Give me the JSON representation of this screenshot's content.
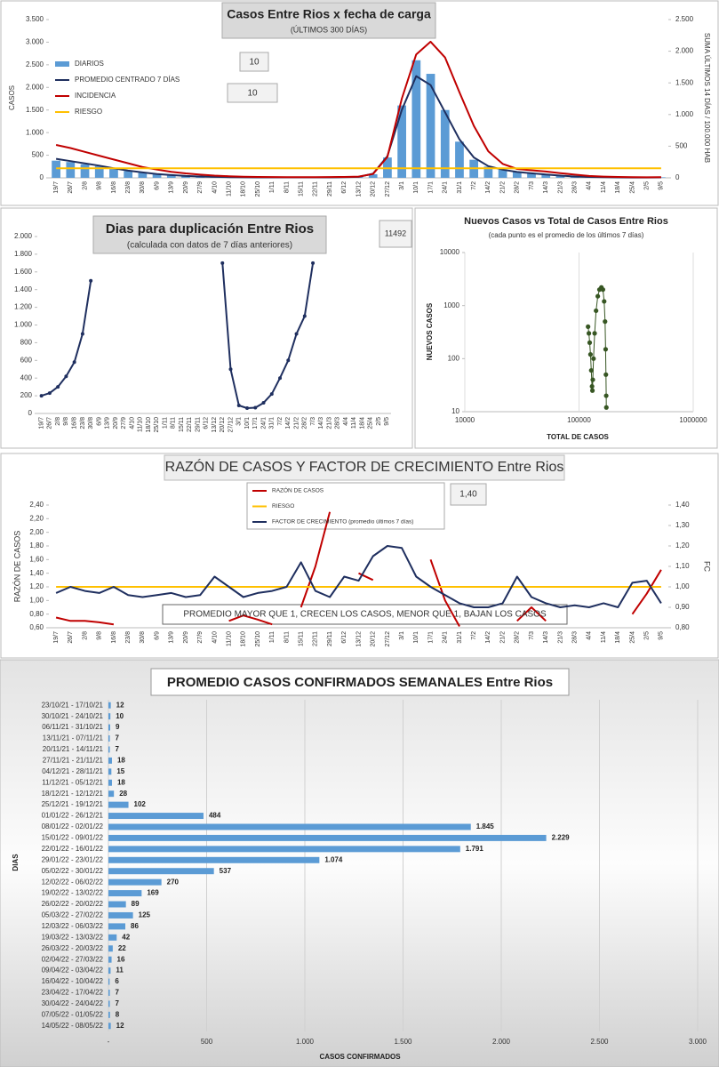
{
  "chart_data": [
    {
      "type": "combo",
      "title": "Casos Entre Rios x fecha de carga",
      "subtitle": "(ÚLTIMOS 300 DÍAS)",
      "y_label": "CASOS",
      "y2_label": "SUMA ÚLTIMOS 14 DÍAS / 100.000 HAB",
      "annotations": [
        "10",
        "10"
      ],
      "categories": [
        "19/7",
        "26/7",
        "2/8",
        "9/8",
        "16/8",
        "23/8",
        "30/8",
        "6/9",
        "13/9",
        "20/9",
        "27/9",
        "4/10",
        "11/10",
        "18/10",
        "25/10",
        "1/11",
        "8/11",
        "15/11",
        "22/11",
        "29/11",
        "6/12",
        "13/12",
        "20/12",
        "27/12",
        "3/1",
        "10/1",
        "17/1",
        "24/1",
        "31/1",
        "7/2",
        "14/2",
        "21/2",
        "28/2",
        "7/3",
        "14/3",
        "21/3",
        "28/3",
        "4/4",
        "11/4",
        "18/4",
        "25/4",
        "2/5",
        "9/5"
      ],
      "ylim": [
        0,
        3500
      ],
      "yticks": [
        0,
        500,
        {
          "value": 1000,
          "label": "1.000"
        },
        {
          "value": 1500,
          "label": "1.500"
        },
        {
          "value": 2000,
          "label": "2.000"
        },
        {
          "value": 2500,
          "label": "2.500"
        },
        {
          "value": 3000,
          "label": "3.000"
        },
        {
          "value": 3500,
          "label": "3.500"
        }
      ],
      "y2lim": [
        0,
        2500
      ],
      "y2ticks": [
        0,
        500,
        {
          "value": 1000,
          "label": "1.000"
        },
        {
          "value": 1500,
          "label": "1.500"
        },
        {
          "value": 2000,
          "label": "2.000"
        },
        {
          "value": 2500,
          "label": "2.500"
        }
      ],
      "series": [
        {
          "name": "DIARIOS",
          "type": "bar",
          "color": "#5b9bd5",
          "values": [
            380,
            350,
            300,
            260,
            200,
            150,
            110,
            80,
            60,
            40,
            30,
            20,
            15,
            12,
            10,
            10,
            8,
            8,
            10,
            10,
            12,
            20,
            80,
            450,
            1600,
            2600,
            2300,
            1500,
            800,
            400,
            250,
            180,
            130,
            100,
            80,
            50,
            30,
            20,
            12,
            10,
            8,
            8,
            12
          ]
        },
        {
          "name": "PROMEDIO CENTRADO 7 DÍAS",
          "type": "line",
          "color": "#1f2f5f",
          "values": [
            420,
            370,
            320,
            270,
            210,
            160,
            120,
            85,
            60,
            42,
            30,
            22,
            16,
            12,
            10,
            10,
            9,
            9,
            10,
            10,
            14,
            22,
            90,
            480,
            1500,
            2250,
            2050,
            1450,
            850,
            450,
            260,
            180,
            130,
            100,
            75,
            50,
            30,
            20,
            13,
            10,
            8,
            8,
            10
          ]
        },
        {
          "name": "INCIDENCIA",
          "type": "line",
          "color": "#c00000",
          "axis": "y2",
          "values": [
            520,
            470,
            410,
            350,
            290,
            230,
            170,
            130,
            95,
            70,
            50,
            35,
            25,
            18,
            14,
            12,
            11,
            10,
            11,
            12,
            14,
            20,
            60,
            330,
            1250,
            1950,
            2150,
            1900,
            1350,
            820,
            420,
            220,
            140,
            120,
            100,
            75,
            50,
            30,
            20,
            14,
            10,
            9,
            10
          ]
        },
        {
          "name": "RIESGO",
          "type": "line",
          "color": "#ffc000",
          "axis": "y2",
          "values": [
            150,
            150,
            150,
            150,
            150,
            150,
            150,
            150,
            150,
            150,
            150,
            150,
            150,
            150,
            150,
            150,
            150,
            150,
            150,
            150,
            150,
            150,
            150,
            150,
            150,
            150,
            150,
            150,
            150,
            150,
            150,
            150,
            150,
            150,
            150,
            150,
            150,
            150,
            150,
            150,
            150,
            150,
            150
          ]
        }
      ]
    },
    {
      "type": "line",
      "title": "Dias para duplicación Entre Rios",
      "subtitle": "(calculada con datos de 7 días anteriores)",
      "annotations": [
        "11492"
      ],
      "categories": [
        "19/7",
        "26/7",
        "2/8",
        "9/8",
        "16/8",
        "23/8",
        "30/8",
        "6/9",
        "13/9",
        "20/9",
        "27/9",
        "4/10",
        "11/10",
        "18/10",
        "25/10",
        "1/11",
        "8/11",
        "15/11",
        "22/11",
        "29/11",
        "6/12",
        "13/12",
        "20/12",
        "27/12",
        "3/1",
        "10/1",
        "17/1",
        "24/1",
        "31/1",
        "7/2",
        "14/2",
        "21/2",
        "28/2",
        "7/3",
        "14/3",
        "21/3",
        "28/3",
        "4/4",
        "11/4",
        "18/4",
        "25/4",
        "2/5",
        "9/5"
      ],
      "ylim": [
        0,
        2000
      ],
      "yticks": [
        0,
        200,
        400,
        600,
        800,
        {
          "value": 1000,
          "label": "1.000"
        },
        {
          "value": 1200,
          "label": "1.200"
        },
        {
          "value": 1400,
          "label": "1.400"
        },
        {
          "value": 1600,
          "label": "1.600"
        },
        {
          "value": 1800,
          "label": "1.800"
        },
        {
          "value": 2000,
          "label": "2.000"
        }
      ],
      "series": [
        {
          "type": "line",
          "color": "#1f2f5f",
          "marker": true,
          "values": [
            200,
            230,
            300,
            420,
            580,
            900,
            1500,
            null,
            null,
            null,
            null,
            null,
            null,
            null,
            null,
            null,
            null,
            null,
            null,
            null,
            null,
            null,
            1700,
            500,
            90,
            60,
            65,
            120,
            220,
            400,
            600,
            900,
            1100,
            1700,
            null,
            null,
            null,
            null,
            null,
            null,
            null,
            null,
            null
          ]
        }
      ]
    },
    {
      "type": "scatter",
      "title": "Nuevos Casos vs Total de Casos Entre Rios",
      "subtitle": "(cada punto es el promedio de los últimos 7 días)",
      "x_label": "TOTAL DE CASOS",
      "y_label": "NUEVOS CASOS",
      "xscale": "log",
      "yscale": "log",
      "color": "#375623",
      "xlim": [
        10000,
        1000000
      ],
      "xticks": [
        10000,
        100000,
        1000000
      ],
      "ylim": [
        10,
        10000
      ],
      "yticks": [
        10,
        100,
        1000,
        10000
      ],
      "x": [
        120000,
        122000,
        124000,
        126000,
        128000,
        130000,
        131000,
        132000,
        134000,
        137000,
        141000,
        146000,
        151000,
        157000,
        162000,
        166000,
        169000,
        171000,
        172000,
        173000,
        173500
      ],
      "values": [
        400,
        300,
        200,
        120,
        60,
        30,
        25,
        40,
        100,
        300,
        800,
        1500,
        2000,
        2200,
        2000,
        1200,
        500,
        150,
        50,
        20,
        12
      ]
    },
    {
      "type": "combo",
      "title": "RAZÓN DE CASOS Y FACTOR DE CRECIMIENTO Entre Rios",
      "y_label": "RAZÓN DE CASOS",
      "y2_label": "FC",
      "annotations": [
        "1,40",
        "PROMEDIO MAYOR QUE 1, CRECEN LOS CASOS, MENOR QUE 1, BAJAN LOS CASOS"
      ],
      "categories": [
        "19/7",
        "26/7",
        "2/8",
        "9/8",
        "16/8",
        "23/8",
        "30/8",
        "6/9",
        "13/9",
        "20/9",
        "27/9",
        "4/10",
        "11/10",
        "18/10",
        "25/10",
        "1/11",
        "8/11",
        "15/11",
        "22/11",
        "29/11",
        "6/12",
        "13/12",
        "20/12",
        "27/12",
        "3/1",
        "10/1",
        "17/1",
        "24/1",
        "31/1",
        "7/2",
        "14/2",
        "21/2",
        "28/2",
        "7/3",
        "14/3",
        "21/3",
        "28/3",
        "4/4",
        "11/4",
        "18/4",
        "25/4",
        "2/5",
        "9/5"
      ],
      "ylim": [
        0.6,
        2.4
      ],
      "yticks": [
        {
          "value": 0.6,
          "label": "0,60"
        },
        {
          "value": 0.8,
          "label": "0,80"
        },
        {
          "value": 1,
          "label": "1,00"
        },
        {
          "value": 1.2,
          "label": "1,20"
        },
        {
          "value": 1.4,
          "label": "1,40"
        },
        {
          "value": 1.6,
          "label": "1,60"
        },
        {
          "value": 1.8,
          "label": "1,80"
        },
        {
          "value": 2,
          "label": "2,00"
        },
        {
          "value": 2.2,
          "label": "2,20"
        },
        {
          "value": 2.4,
          "label": "2,40"
        }
      ],
      "y2lim": [
        0.8,
        1.4
      ],
      "y2ticks": [
        {
          "value": 0.8,
          "label": "0,80"
        },
        {
          "value": 0.9,
          "label": "0,90"
        },
        {
          "value": 1,
          "label": "1,00"
        },
        {
          "value": 1.1,
          "label": "1,10"
        },
        {
          "value": 1.2,
          "label": "1,20"
        },
        {
          "value": 1.3,
          "label": "1,30"
        },
        {
          "value": 1.4,
          "label": "1,40"
        }
      ],
      "series": [
        {
          "name": "RAZÓN DE CASOS",
          "type": "line",
          "color": "#c00000",
          "values": [
            0.75,
            0.7,
            0.7,
            0.68,
            0.65,
            null,
            null,
            null,
            null,
            null,
            null,
            null,
            0.7,
            0.78,
            0.72,
            0.65,
            null,
            0.9,
            1.5,
            2.3,
            null,
            1.4,
            1.3,
            null,
            null,
            null,
            1.6,
            1.0,
            0.62,
            null,
            null,
            null,
            0.7,
            0.9,
            0.7,
            null,
            null,
            null,
            null,
            null,
            0.8,
            1.1,
            1.45
          ]
        },
        {
          "name": "RIESGO",
          "type": "line",
          "color": "#ffc000",
          "axis": "y2",
          "values": [
            1,
            1,
            1,
            1,
            1,
            1,
            1,
            1,
            1,
            1,
            1,
            1,
            1,
            1,
            1,
            1,
            1,
            1,
            1,
            1,
            1,
            1,
            1,
            1,
            1,
            1,
            1,
            1,
            1,
            1,
            1,
            1,
            1,
            1,
            1,
            1,
            1,
            1,
            1,
            1,
            1,
            1,
            1
          ]
        },
        {
          "name": "FACTOR DE CRECIMIENTO (promedio últimos 7 días)",
          "type": "line",
          "color": "#1f2f5f",
          "axis": "y2",
          "values": [
            0.97,
            1.0,
            0.98,
            0.97,
            1.0,
            0.96,
            0.95,
            0.96,
            0.97,
            0.95,
            0.96,
            1.05,
            1.0,
            0.95,
            0.97,
            0.98,
            1.0,
            1.12,
            0.98,
            0.95,
            1.05,
            1.03,
            1.15,
            1.2,
            1.19,
            1.05,
            1.0,
            0.96,
            0.92,
            0.9,
            0.9,
            0.92,
            1.05,
            0.95,
            0.92,
            0.9,
            0.91,
            0.9,
            0.92,
            0.9,
            1.02,
            1.03,
            0.92
          ]
        }
      ]
    },
    {
      "type": "hbar",
      "title": "PROMEDIO CASOS CONFIRMADOS SEMANALES Entre Rios",
      "y_label": "DIAS",
      "x_label": "CASOS CONFIRMADOS",
      "color": "#5b9bd5",
      "grid": true,
      "categories": [
        "23/10/21 - 17/10/21",
        "30/10/21 - 24/10/21",
        "06/11/21 - 31/10/21",
        "13/11/21 - 07/11/21",
        "20/11/21 - 14/11/21",
        "27/11/21 - 21/11/21",
        "04/12/21 - 28/11/21",
        "11/12/21 - 05/12/21",
        "18/12/21 - 12/12/21",
        "25/12/21 - 19/12/21",
        "01/01/22 - 26/12/21",
        "08/01/22 - 02/01/22",
        "15/01/22 - 09/01/22",
        "22/01/22 - 16/01/22",
        "29/01/22 - 23/01/22",
        "05/02/22 - 30/01/22",
        "12/02/22 - 06/02/22",
        "19/02/22 - 13/02/22",
        "26/02/22 - 20/02/22",
        "05/03/22 - 27/02/22",
        "12/03/22 - 06/03/22",
        "19/03/22 - 13/03/22",
        "26/03/22 - 20/03/22",
        "02/04/22 - 27/03/22",
        "09/04/22 - 03/04/22",
        "16/04/22 - 10/04/22",
        "23/04/22 - 17/04/22",
        "30/04/22 - 24/04/22",
        "07/05/22 - 01/05/22",
        "14/05/22 - 08/05/22"
      ],
      "values": [
        12,
        10,
        9,
        7,
        7,
        18,
        15,
        18,
        28,
        102,
        484,
        1845,
        2229,
        1791,
        1074,
        537,
        270,
        169,
        89,
        125,
        86,
        42,
        22,
        16,
        11,
        6,
        7,
        7,
        8,
        12
      ],
      "value_labels": [
        "12",
        "10",
        "9",
        "7",
        "7",
        "18",
        "15",
        "18",
        "28",
        "102",
        "484",
        "1.845",
        "2.229",
        "1.791",
        "1.074",
        "537",
        "270",
        "169",
        "89",
        "125",
        "86",
        "42",
        "22",
        "16",
        "11",
        "6",
        "7",
        "7",
        "8",
        "12"
      ],
      "xlim": [
        0,
        3000
      ],
      "xticks": [
        {
          "value": 0,
          "label": "-"
        },
        500,
        {
          "value": 1000,
          "label": "1.000"
        },
        {
          "value": 1500,
          "label": "1.500"
        },
        {
          "value": 2000,
          "label": "2.000"
        },
        {
          "value": 2500,
          "label": "2.500"
        },
        {
          "value": 3000,
          "label": "3.000"
        }
      ]
    }
  ]
}
